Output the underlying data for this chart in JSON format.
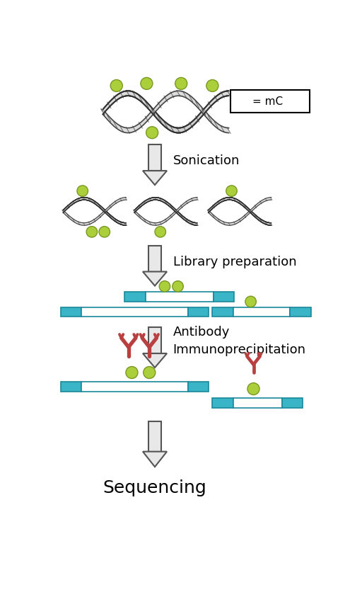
{
  "bg_color": "#ffffff",
  "teal_color": "#3ab5c8",
  "mc_green": "#aacf3a",
  "antibody_red": "#b84040",
  "arrow_fill": "#e8e8e8",
  "arrow_edge": "#555555",
  "dna_gray_dark": "#333333",
  "dna_gray_mid": "#888888",
  "dna_gray_light": "#cccccc",
  "labels": {
    "sonication": "Sonication",
    "library": "Library preparation",
    "antibody": "Antibody\nImmunoprecipitation",
    "sequencing": "Sequencing",
    "legend": "= mC"
  },
  "fig_width": 5.12,
  "fig_height": 8.67,
  "dpi": 100
}
